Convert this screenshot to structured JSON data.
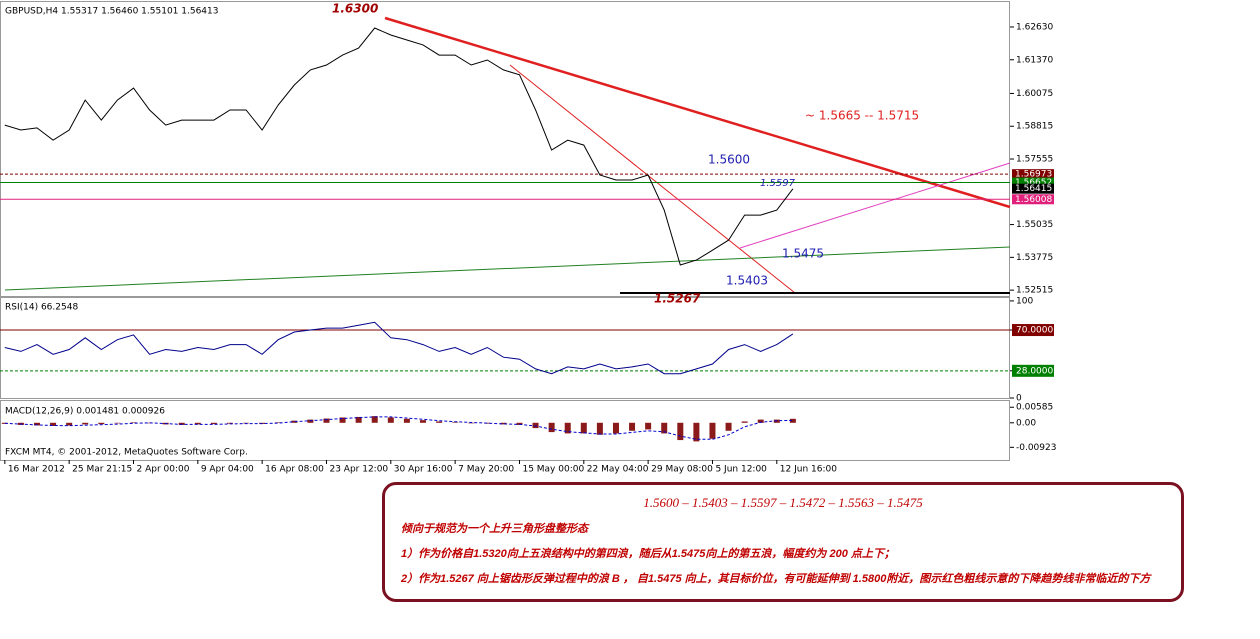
{
  "chart_data": [
    {
      "type": "line",
      "title": "GBPUSD,H4  1.55317 1.56460 1.55101 1.56413",
      "color": "#000000",
      "values": [
        1.5886,
        1.5867,
        1.5875,
        1.5828,
        1.5867,
        1.5982,
        1.5905,
        1.5982,
        1.6028,
        1.5944,
        1.5886,
        1.5905,
        1.5905,
        1.5905,
        1.5944,
        1.5944,
        1.5867,
        1.5963,
        1.604,
        1.6098,
        1.6117,
        1.6155,
        1.6182,
        1.6259,
        1.6232,
        1.6213,
        1.6194,
        1.6155,
        1.6155,
        1.6117,
        1.6136,
        1.6098,
        1.6079,
        1.5944,
        1.579,
        1.5828,
        1.5809,
        1.5694,
        1.5675,
        1.5675,
        1.5694,
        1.5559,
        1.5348,
        1.5367,
        1.5405,
        1.5444,
        1.554,
        1.554,
        1.5559,
        1.5641
      ],
      "xlim": [
        -0.3,
        62.5
      ],
      "xticks": [
        {
          "value": 0,
          "label": "16 Mar 2012"
        },
        {
          "value": 4,
          "label": "25 Mar 21:15"
        },
        {
          "value": 8,
          "label": "2 Apr 00:00"
        },
        {
          "value": 12,
          "label": "9 Apr 04:00"
        },
        {
          "value": 16,
          "label": "16 Apr 08:00"
        },
        {
          "value": 20,
          "label": "23 Apr 12:00"
        },
        {
          "value": 24,
          "label": "30 Apr 16:00"
        },
        {
          "value": 28,
          "label": "7 May 20:00"
        },
        {
          "value": 32,
          "label": "15 May 00:00"
        },
        {
          "value": 36,
          "label": "22 May 04:00"
        },
        {
          "value": 40,
          "label": "29 May 08:00"
        },
        {
          "value": 44,
          "label": "5 Jun 12:00"
        },
        {
          "value": 48,
          "label": "12 Jun 16:00"
        }
      ],
      "ylim": [
        1.5229,
        1.6359
      ],
      "yticks": [
        {
          "value": 1.6263,
          "label": "1.62630"
        },
        {
          "value": 1.6137,
          "label": "1.61370"
        },
        {
          "value": 1.60075,
          "label": "1.60075"
        },
        {
          "value": 1.58815,
          "label": "1.58815"
        },
        {
          "value": 1.57555,
          "label": "1.57555"
        },
        {
          "value": 1.55035,
          "label": "1.55035"
        },
        {
          "value": 1.53775,
          "label": "1.53775"
        },
        {
          "value": 1.52515,
          "label": "1.52515"
        }
      ],
      "hlines": [
        {
          "value": 1.56973,
          "color": "#800000",
          "dash": true
        },
        {
          "value": 1.56652,
          "color": "#008000",
          "dash": false
        },
        {
          "value": 1.56415,
          "color": "#000000",
          "dash": false
        },
        {
          "value": 1.56008,
          "color": "#e0207a",
          "dash": false
        }
      ],
      "annotations": [
        "1.6300",
        "1.5267",
        "1.5600",
        "1.5597",
        "1.5475",
        "1.5403",
        "~ 1.5665 -- 1.5715"
      ]
    },
    {
      "type": "line",
      "title": "RSI(14) 66.2548",
      "color": "#00008b",
      "values": [
        52,
        48,
        55,
        45,
        50,
        62,
        50,
        60,
        65,
        45,
        50,
        48,
        52,
        50,
        55,
        55,
        45,
        60,
        68,
        70,
        72,
        72,
        75,
        78,
        62,
        60,
        55,
        48,
        52,
        45,
        52,
        42,
        40,
        30,
        25,
        32,
        30,
        35,
        30,
        32,
        35,
        25,
        25,
        30,
        35,
        50,
        55,
        48,
        55,
        66
      ],
      "xlim": [
        -0.3,
        62.5
      ],
      "ylim": [
        0,
        103
      ],
      "yticks": [
        100,
        {
          "value": 70,
          "label": "70.0000",
          "color": "#800000"
        },
        {
          "value": 28,
          "label": "28.0000",
          "color": "#008000"
        },
        0
      ]
    },
    {
      "type": "macd",
      "title": "MACD(12,26,9) 0.001481 0.000926",
      "color": "#8b1a1a",
      "signal_color": "#0000cd",
      "values": [
        -0.0004,
        -0.0008,
        -0.001,
        -0.0012,
        -0.001,
        -0.0006,
        -0.0005,
        -0.0002,
        0.0002,
        0,
        -0.0006,
        -0.0008,
        -0.0006,
        -0.0005,
        -0.0003,
        -0.0002,
        -0.0004,
        0.0002,
        0.0008,
        0.0012,
        0.0016,
        0.002,
        0.0022,
        0.0025,
        0.002,
        0.0015,
        0.001,
        0.0005,
        0.0002,
        -0.0002,
        -0.0003,
        -0.0006,
        -0.0008,
        -0.002,
        -0.0035,
        -0.004,
        -0.004,
        -0.0045,
        -0.004,
        -0.003,
        -0.0025,
        -0.004,
        -0.0065,
        -0.007,
        -0.006,
        -0.003,
        0.0005,
        0.0012,
        0.0012,
        0.0015
      ],
      "signal": [
        -0.0002,
        -0.0005,
        -0.0008,
        -0.001,
        -0.0011,
        -0.0009,
        -0.0007,
        -0.0005,
        -0.0002,
        0,
        -0.0003,
        -0.0006,
        -0.0006,
        -0.0006,
        -0.0004,
        -0.0003,
        -0.0003,
        -0.0001,
        0.0004,
        0.0008,
        0.0012,
        0.0016,
        0.0019,
        0.0022,
        0.0022,
        0.0018,
        0.0013,
        0.0008,
        0.0004,
        0.0001,
        -0.0001,
        -0.0004,
        -0.0006,
        -0.0012,
        -0.0024,
        -0.0033,
        -0.0038,
        -0.0042,
        -0.0042,
        -0.0036,
        -0.003,
        -0.0034,
        -0.005,
        -0.0062,
        -0.0062,
        -0.0045,
        -0.0015,
        0.0002,
        0.0008,
        0.0009
      ],
      "xlim": [
        -0.3,
        62.5
      ],
      "ylim": [
        -0.014,
        0.0082
      ],
      "yticks": [
        {
          "value": 0.00585,
          "label": "0.00585"
        },
        {
          "value": 0,
          "label": "0.00"
        },
        {
          "value": -0.00923,
          "label": "-0.00923"
        }
      ]
    }
  ],
  "footer": "FXCM MT4, © 2001-2012, MetaQuotes Software Corp.",
  "note": {
    "heading": "1.5600 – 1.5403 – 1.5597 – 1.5472 – 1.5563 – 1.5475",
    "lines": [
      "倾向于规范为一个上升三角形盘整形态",
      "1）作为价格自1.5320向上五浪结构中的第四浪，随后从1.5475向上的第五浪，幅度约为 200 点上下；",
      "2）作为1.5267 向上锯齿形反弹过程中的浪 B ， 自1.5475 向上，其目标价位，有可能延伸到 1.5800附近，图示红色粗线示意的下降趋势线非常临近的下方"
    ]
  }
}
